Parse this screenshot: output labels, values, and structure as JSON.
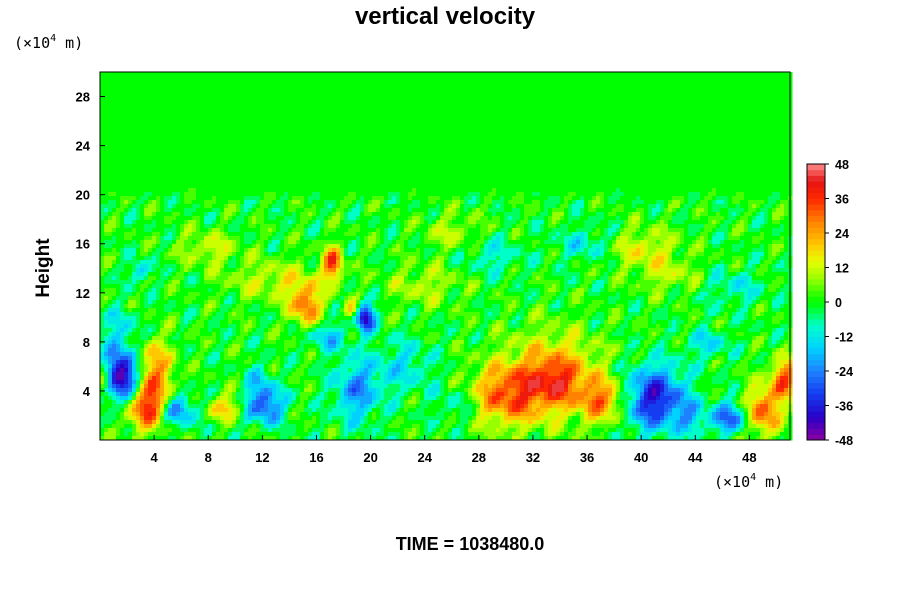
{
  "chart_data": {
    "type": "heatmap",
    "title": "vertical velocity",
    "ylabel": "Height",
    "xlabel": "",
    "x_unit_prefix": "(×10",
    "x_unit_exp": "4",
    "x_unit_suffix": " m)",
    "y_unit_prefix": "(×10",
    "y_unit_exp": "4",
    "y_unit_suffix": " m)",
    "xlim": [
      0,
      51
    ],
    "ylim": [
      0,
      30
    ],
    "xticks": [
      4,
      8,
      12,
      16,
      20,
      24,
      28,
      32,
      36,
      40,
      44,
      48
    ],
    "yticks": [
      4,
      8,
      12,
      16,
      20,
      24,
      28
    ],
    "colorbar": {
      "range": [
        -48,
        48
      ],
      "ticks": [
        48,
        36,
        24,
        12,
        0,
        -12,
        -24,
        -36,
        -48
      ]
    },
    "features": [
      {
        "x": 1.6,
        "y": 5.2,
        "sx": 0.9,
        "sy": 1.4,
        "v": -52
      },
      {
        "x": 0.2,
        "y": 4.8,
        "sx": 0.6,
        "sy": 0.8,
        "v": 26
      },
      {
        "x": 3.4,
        "y": 2.6,
        "sx": 1.0,
        "sy": 1.3,
        "v": 34
      },
      {
        "x": 4.0,
        "y": 5.6,
        "sx": 1.0,
        "sy": 1.8,
        "v": 26
      },
      {
        "x": 5.8,
        "y": 2.4,
        "sx": 0.9,
        "sy": 0.9,
        "v": -24
      },
      {
        "x": 9.2,
        "y": 2.6,
        "sx": 0.9,
        "sy": 0.7,
        "v": 20
      },
      {
        "x": 12.2,
        "y": 2.8,
        "sx": 1.0,
        "sy": 1.0,
        "v": -30
      },
      {
        "x": 11.8,
        "y": 4.8,
        "sx": 0.6,
        "sy": 1.0,
        "v": -14
      },
      {
        "x": 15.2,
        "y": 11.0,
        "sx": 0.8,
        "sy": 1.2,
        "v": 30
      },
      {
        "x": 17.2,
        "y": 14.4,
        "sx": 0.5,
        "sy": 1.0,
        "v": 34
      },
      {
        "x": 19.6,
        "y": 10.0,
        "sx": 0.5,
        "sy": 0.8,
        "v": -42
      },
      {
        "x": 18.6,
        "y": 10.6,
        "sx": 0.4,
        "sy": 0.5,
        "v": 20
      },
      {
        "x": 19.0,
        "y": 4.0,
        "sx": 1.2,
        "sy": 1.8,
        "v": -22
      },
      {
        "x": 16.8,
        "y": 8.4,
        "sx": 1.0,
        "sy": 0.8,
        "v": -16
      },
      {
        "x": 3.0,
        "y": 13.8,
        "sx": 0.5,
        "sy": 0.6,
        "v": -18
      },
      {
        "x": 30.0,
        "y": 3.6,
        "sx": 2.0,
        "sy": 1.7,
        "v": 28
      },
      {
        "x": 33.5,
        "y": 5.3,
        "sx": 2.5,
        "sy": 2.4,
        "v": 24
      },
      {
        "x": 33.8,
        "y": 4.8,
        "sx": 1.2,
        "sy": 1.2,
        "v": 14
      },
      {
        "x": 37.2,
        "y": 3.2,
        "sx": 1.2,
        "sy": 1.2,
        "v": 26
      },
      {
        "x": 41.0,
        "y": 3.4,
        "sx": 1.6,
        "sy": 1.8,
        "v": -38
      },
      {
        "x": 43.8,
        "y": 1.8,
        "sx": 0.8,
        "sy": 0.9,
        "v": -14
      },
      {
        "x": 46.6,
        "y": 1.8,
        "sx": 0.9,
        "sy": 0.9,
        "v": -28
      },
      {
        "x": 49.0,
        "y": 2.4,
        "sx": 0.9,
        "sy": 1.4,
        "v": 32
      },
      {
        "x": 50.6,
        "y": 5.0,
        "sx": 0.7,
        "sy": 1.2,
        "v": 32
      },
      {
        "x": 45.0,
        "y": 7.8,
        "sx": 1.0,
        "sy": 0.8,
        "v": -14
      },
      {
        "x": 13.0,
        "y": 13.0,
        "sx": 2.5,
        "sy": 1.2,
        "v": 12
      },
      {
        "x": 24.0,
        "y": 12.6,
        "sx": 2.0,
        "sy": 1.2,
        "v": 10
      },
      {
        "x": 29.0,
        "y": 15.0,
        "sx": 1.5,
        "sy": 1.0,
        "v": -10
      },
      {
        "x": 40.0,
        "y": 15.6,
        "sx": 2.0,
        "sy": 1.2,
        "v": 14
      },
      {
        "x": 42.0,
        "y": 13.4,
        "sx": 1.5,
        "sy": 1.0,
        "v": 10
      },
      {
        "x": 36.0,
        "y": 16.0,
        "sx": 1.5,
        "sy": 1.0,
        "v": -12
      },
      {
        "x": 47.0,
        "y": 12.4,
        "sx": 1.5,
        "sy": 1.0,
        "v": -10
      },
      {
        "x": 8.0,
        "y": 15.6,
        "sx": 1.5,
        "sy": 1.0,
        "v": 12
      },
      {
        "x": 26.0,
        "y": 17.0,
        "sx": 1.5,
        "sy": 1.0,
        "v": 10
      },
      {
        "x": 1.5,
        "y": 9.0,
        "sx": 1.0,
        "sy": 1.2,
        "v": -12
      },
      {
        "x": 22.5,
        "y": 6.0,
        "sx": 1.5,
        "sy": 1.5,
        "v": -12
      },
      {
        "x": 26.5,
        "y": 3.0,
        "sx": 1.2,
        "sy": 1.2,
        "v": -10
      }
    ]
  },
  "footer": {
    "time_label": "TIME = 1038480.0"
  }
}
